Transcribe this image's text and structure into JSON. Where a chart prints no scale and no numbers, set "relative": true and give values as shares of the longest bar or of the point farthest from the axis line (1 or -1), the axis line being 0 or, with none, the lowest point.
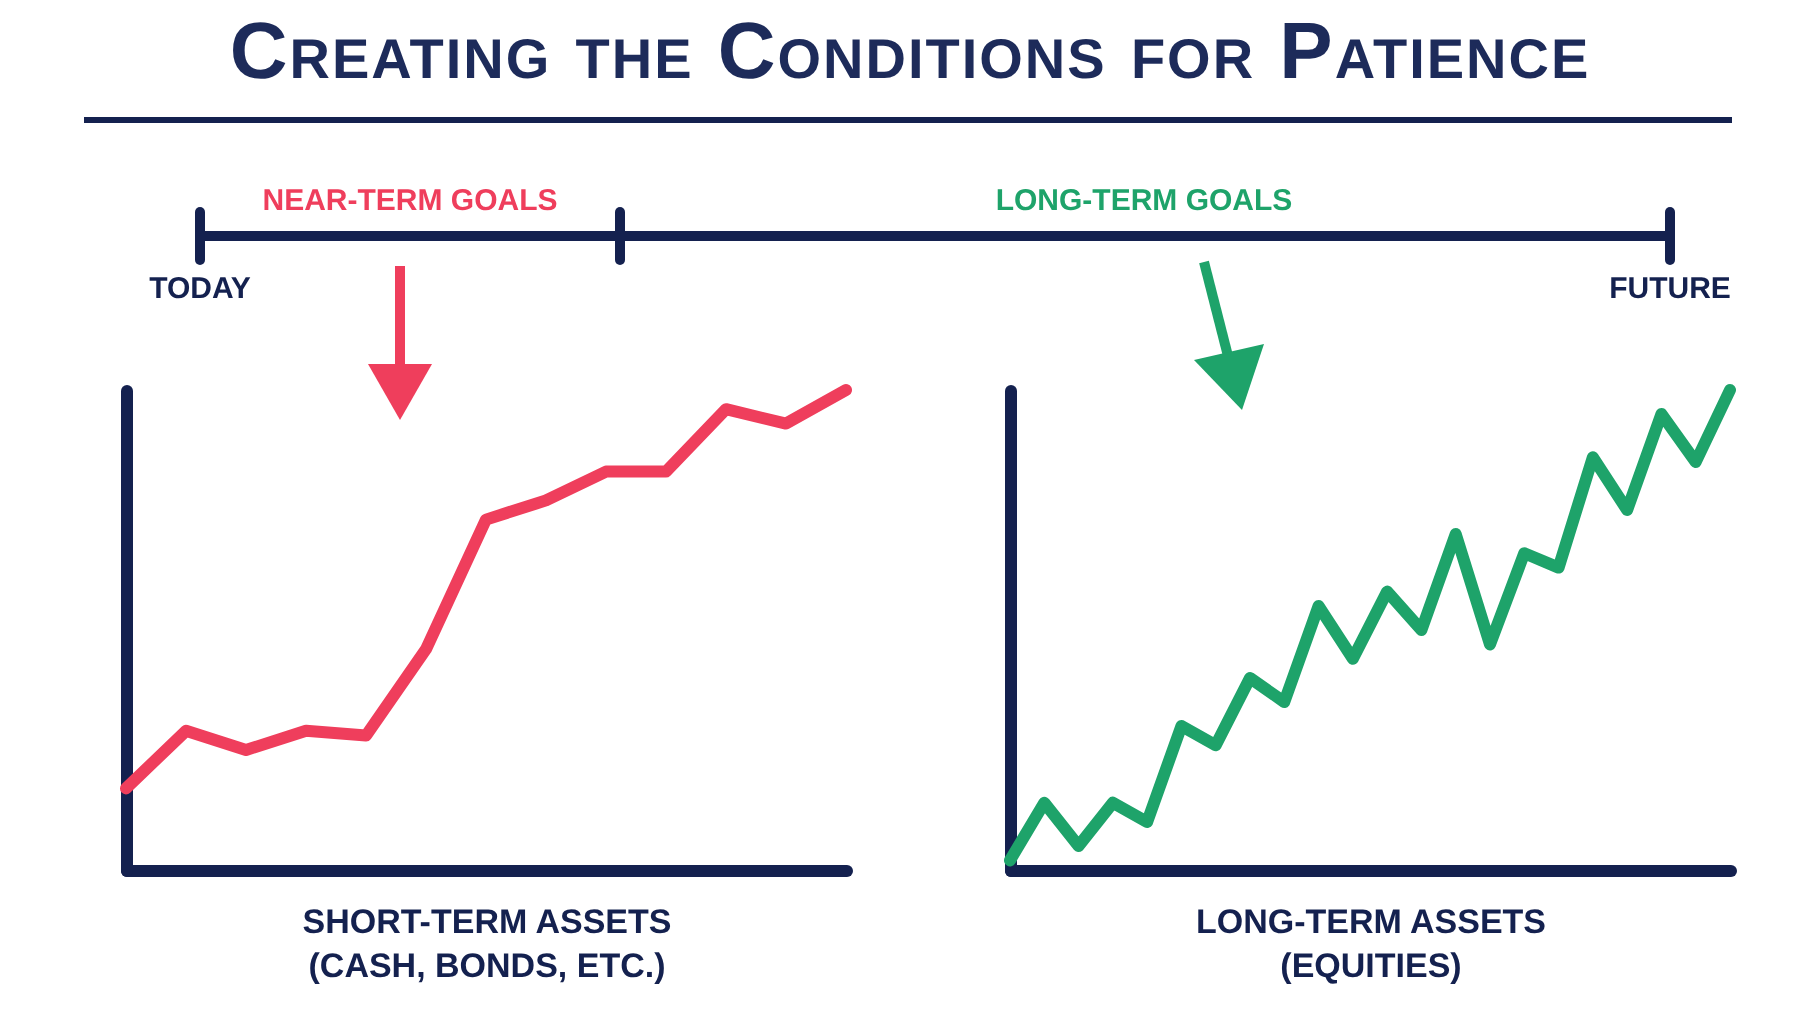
{
  "chart_data": [
    {
      "type": "other",
      "title": "Creating the Conditions for Patience",
      "annotations": [
        "NEAR-TERM GOALS",
        "LONG-TERM GOALS",
        "TODAY",
        "FUTURE"
      ]
    },
    {
      "type": "line",
      "relative": true,
      "tick_labels": false,
      "xlabel": "SHORT-TERM ASSETS\n(CASH, BONDS, ETC.)",
      "categories": [
        null,
        null,
        null,
        null,
        null,
        null,
        null,
        null,
        null,
        null,
        null,
        null,
        null
      ],
      "series": [
        {
          "color": "#ef3e5c",
          "values": [
            0.17,
            0.29,
            0.25,
            0.29,
            0.28,
            0.46,
            0.73,
            0.77,
            0.83,
            0.83,
            0.96,
            0.93,
            1
          ]
        }
      ]
    },
    {
      "type": "line",
      "relative": true,
      "tick_labels": false,
      "xlabel": "LONG-TERM ASSETS\n(EQUITIES)",
      "categories": [
        null,
        null,
        null,
        null,
        null,
        null,
        null,
        null,
        null,
        null,
        null,
        null,
        null,
        null,
        null,
        null,
        null,
        null,
        null,
        null,
        null,
        null
      ],
      "series": [
        {
          "color": "#1ea36a",
          "values": [
            0.02,
            0.14,
            0.05,
            0.14,
            0.1,
            0.3,
            0.26,
            0.4,
            0.35,
            0.55,
            0.44,
            0.58,
            0.5,
            0.7,
            0.47,
            0.66,
            0.63,
            0.86,
            0.75,
            0.95,
            0.85,
            1
          ]
        }
      ]
    }
  ]
}
